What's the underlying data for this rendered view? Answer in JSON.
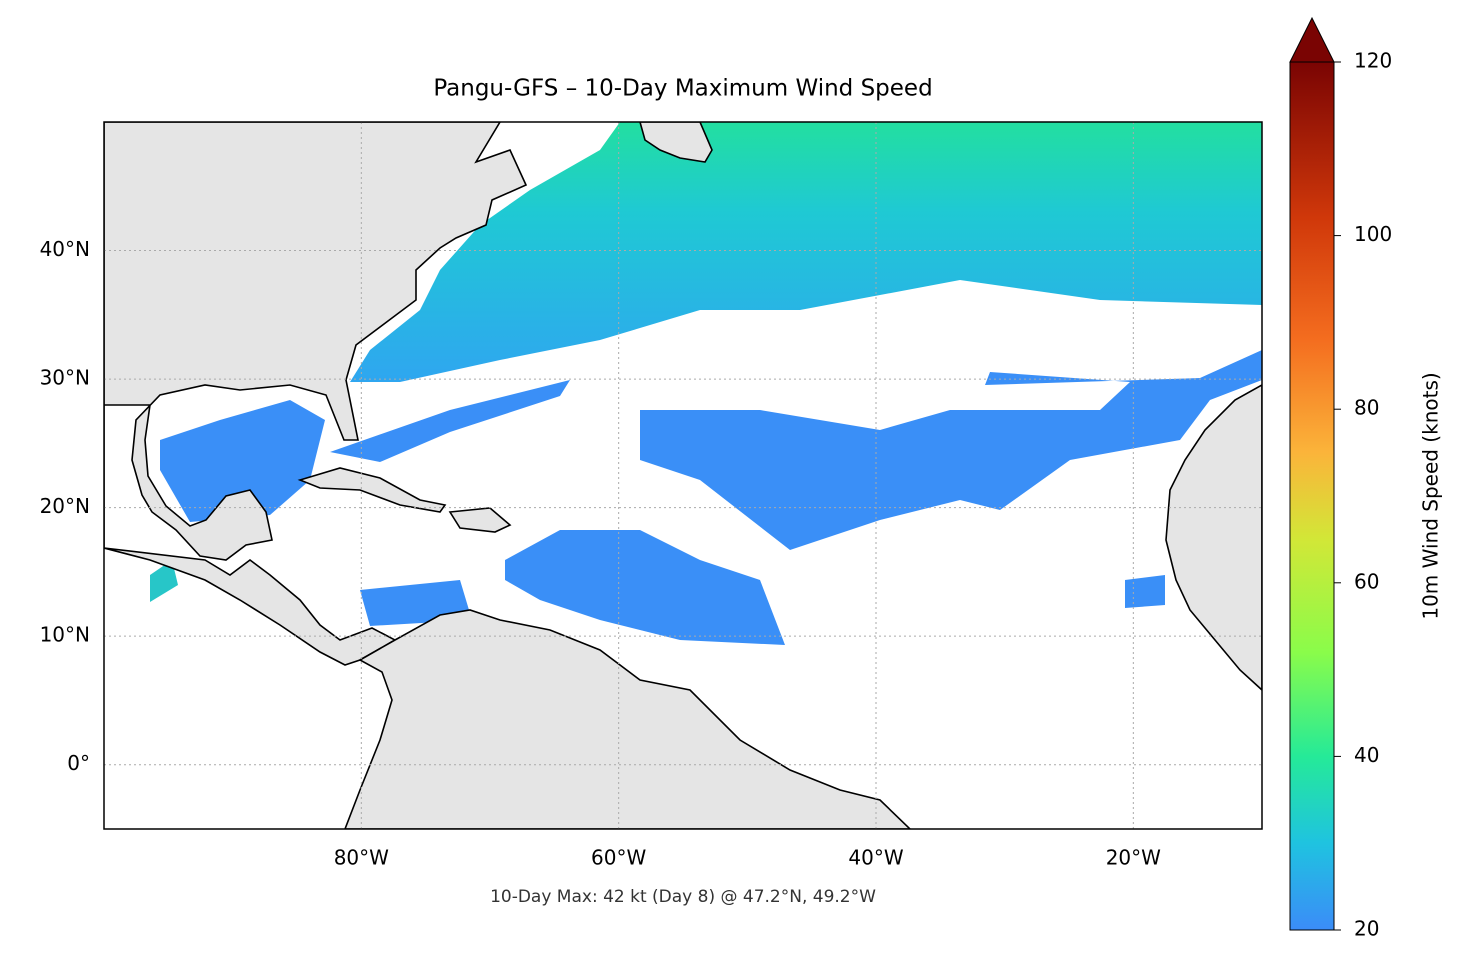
{
  "title": "Pangu-GFS – 10-Day Maximum Wind Speed",
  "annotation": "10-Day Max: 42 kt (Day 8) @ 47.2°N, 49.2°W",
  "map": {
    "lonlim": [
      -100,
      -10
    ],
    "latlim": [
      -5,
      50
    ],
    "lon_ticks": [
      {
        "value": -80,
        "label": "80°W"
      },
      {
        "value": -60,
        "label": "60°W"
      },
      {
        "value": -40,
        "label": "40°W"
      },
      {
        "value": -20,
        "label": "20°W"
      }
    ],
    "lat_ticks": [
      {
        "value": 0,
        "label": "0°"
      },
      {
        "value": 10,
        "label": "10°N"
      },
      {
        "value": 20,
        "label": "20°N"
      },
      {
        "value": 30,
        "label": "30°N"
      },
      {
        "value": 40,
        "label": "40°N"
      }
    ],
    "grid": true
  },
  "colorbar": {
    "label": "10m Wind Speed (knots)",
    "lim": [
      20,
      120
    ],
    "ticks": [
      20,
      40,
      60,
      80,
      100,
      120
    ]
  }
}
